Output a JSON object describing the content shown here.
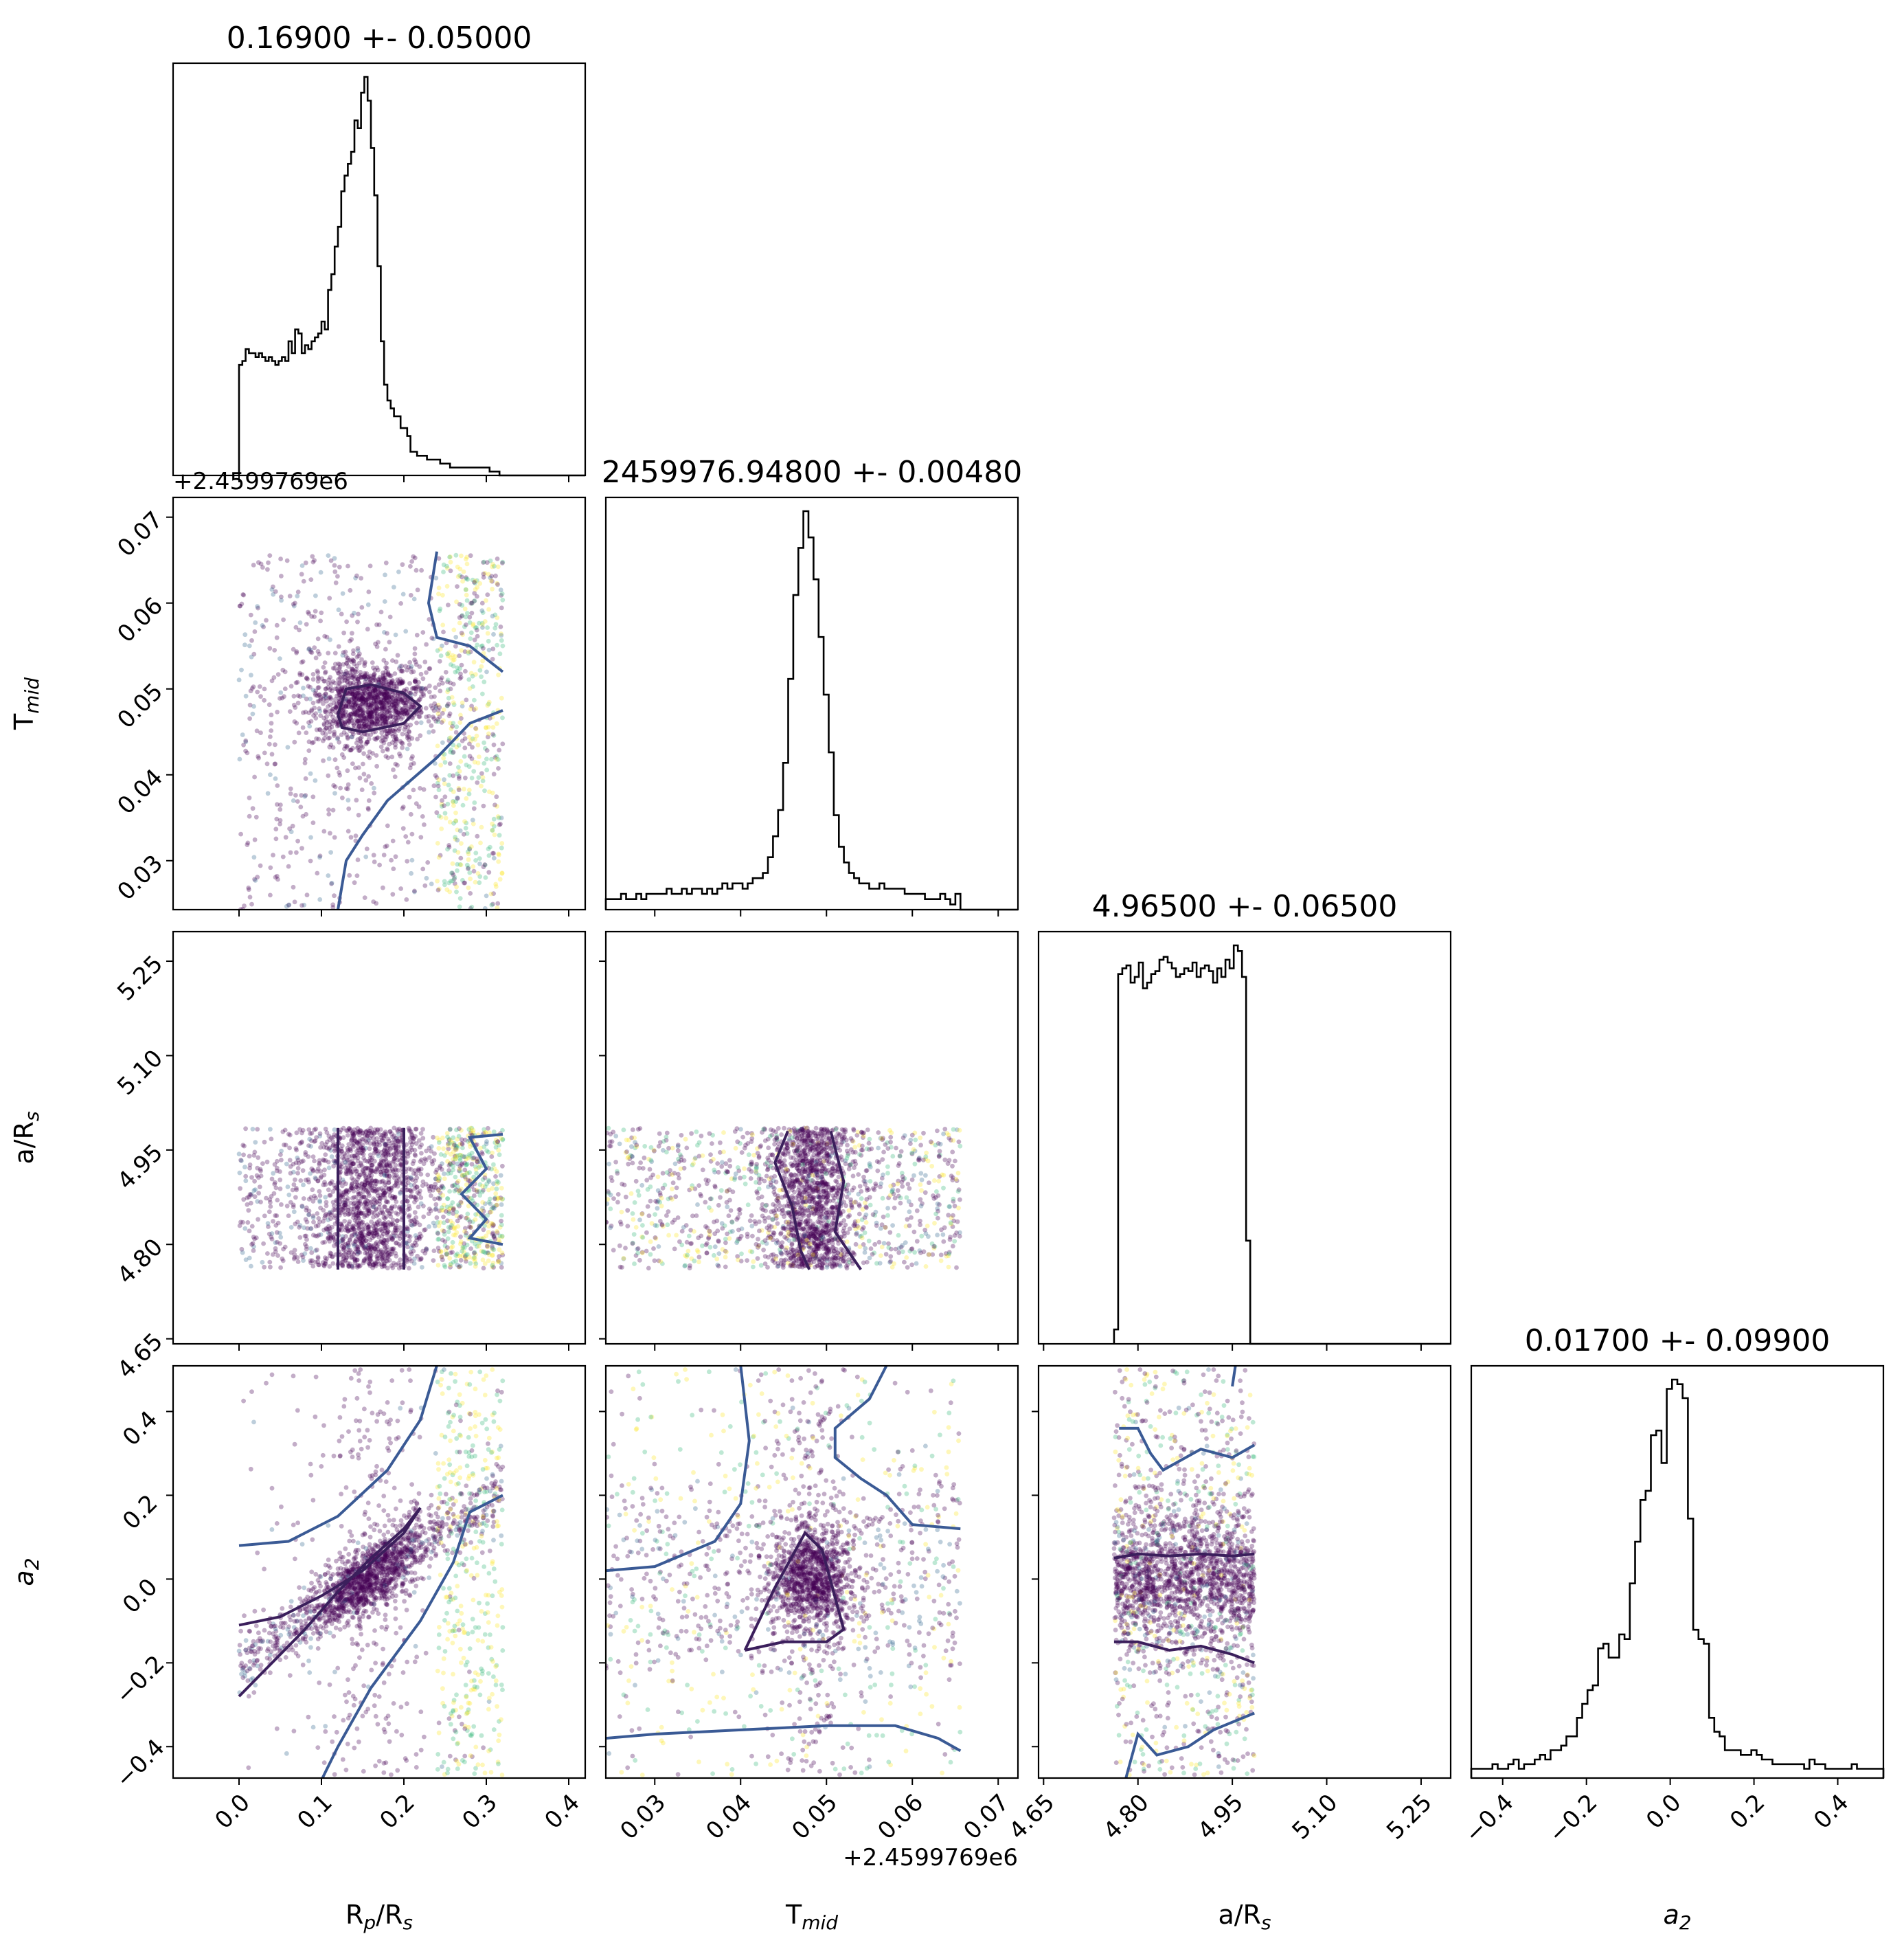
{
  "chart_data": {
    "type": "scatter",
    "subtype": "corner-plot",
    "variables": [
      {
        "key": "rprs",
        "axis_label": "R_p/R_s",
        "title": "0.16900 +- 0.05000",
        "range": [
          -0.08,
          0.42
        ],
        "ticks": [
          0.0,
          0.1,
          0.2,
          0.3,
          0.4
        ],
        "tick_labels": [
          "0.0",
          "0.1",
          "0.2",
          "0.3",
          "0.4"
        ],
        "offset_text": ""
      },
      {
        "key": "tmid",
        "axis_label": "T_mid",
        "title": "2459976.94800 +- 0.00480",
        "range": [
          0.0243,
          0.0723
        ],
        "ticks": [
          0.03,
          0.04,
          0.05,
          0.06,
          0.07
        ],
        "tick_labels": [
          "0.03",
          "0.04",
          "0.05",
          "0.06",
          "0.07"
        ],
        "offset_text": "+2.4599769e6"
      },
      {
        "key": "ars",
        "axis_label": "a/R_s",
        "title": "4.96500 +- 0.06500",
        "range": [
          4.642,
          5.297
        ],
        "ticks": [
          4.65,
          4.8,
          4.95,
          5.1,
          5.25
        ],
        "tick_labels": [
          "4.65",
          "4.80",
          "4.95",
          "5.10",
          "5.25"
        ],
        "offset_text": ""
      },
      {
        "key": "a2",
        "axis_label": "a_2",
        "title": "0.01700 +- 0.09900",
        "range": [
          -0.475,
          0.509
        ],
        "ticks": [
          -0.4,
          -0.2,
          0.0,
          0.2,
          0.4
        ],
        "tick_labels": [
          "−0.4",
          "−0.2",
          "0.0",
          "0.2",
          "0.4"
        ],
        "offset_text": ""
      }
    ],
    "histograms": {
      "rprs": {
        "x0": 0.0,
        "x1": 0.32,
        "counts": [
          28,
          29,
          32,
          31,
          31,
          30,
          31,
          30,
          29,
          30,
          29,
          28,
          29,
          30,
          29,
          34,
          31,
          37,
          36,
          31,
          33,
          32,
          34,
          35,
          36,
          39,
          37,
          47,
          51,
          58,
          63,
          72,
          76,
          79,
          82,
          90,
          88,
          97,
          101,
          95,
          83,
          71,
          53,
          34,
          23,
          19,
          17,
          15,
          15,
          12,
          12,
          10,
          6,
          6,
          5,
          5,
          5,
          4,
          4,
          4,
          4,
          3,
          3,
          3,
          2,
          2,
          2,
          2,
          2,
          2,
          2,
          2,
          2,
          2,
          2,
          2,
          1,
          1,
          1,
          0
        ]
      },
      "tmid": {
        "x0": 0.0243,
        "x1": 0.0656,
        "counts": [
          2,
          2,
          2,
          3,
          2,
          2,
          3,
          2,
          3,
          3,
          3,
          3,
          4,
          3,
          3,
          4,
          3,
          4,
          4,
          3,
          4,
          3,
          4,
          5,
          4,
          5,
          5,
          4,
          5,
          6,
          6,
          7,
          10,
          14,
          19,
          28,
          44,
          60,
          69,
          76,
          71,
          63,
          52,
          41,
          30,
          18,
          12,
          9,
          7,
          6,
          5,
          5,
          4,
          4,
          5,
          4,
          4,
          4,
          4,
          3,
          3,
          3,
          3,
          2,
          2,
          2,
          3,
          2,
          1,
          3
        ]
      },
      "ars": {
        "x0": 4.762,
        "x1": 4.985,
        "counts": [
          5,
          129,
          131,
          132,
          126,
          128,
          133,
          124,
          126,
          129,
          130,
          134,
          135,
          133,
          131,
          128,
          129,
          131,
          130,
          133,
          128,
          131,
          132,
          130,
          126,
          131,
          128,
          134,
          131,
          139,
          137,
          128,
          36,
          0
        ]
      },
      "a2": {
        "x0": -0.475,
        "x1": 0.509,
        "counts": [
          2,
          2,
          2,
          2,
          3,
          2,
          2,
          3,
          4,
          2,
          3,
          3,
          4,
          5,
          4,
          6,
          6,
          7,
          9,
          9,
          13,
          16,
          19,
          20,
          28,
          29,
          26,
          26,
          31,
          30,
          42,
          51,
          60,
          62,
          74,
          75,
          68,
          84,
          86,
          85,
          82,
          56,
          32,
          30,
          29,
          13,
          10,
          9,
          6,
          6,
          6,
          5,
          5,
          6,
          5,
          4,
          4,
          3,
          3,
          3,
          3,
          3,
          3,
          2,
          4,
          3,
          3,
          2,
          2,
          2,
          2,
          2,
          3,
          2,
          2,
          2,
          2,
          2
        ]
      }
    },
    "points_per_panel": 2200,
    "color_map": "viridis",
    "colors": {
      "dark": "#440154",
      "mid": "#31688e",
      "light": "#35b779",
      "yellow": "#fde725",
      "contour_inner": "#3b1f5c",
      "contour_outer": "#3a5a95"
    }
  }
}
